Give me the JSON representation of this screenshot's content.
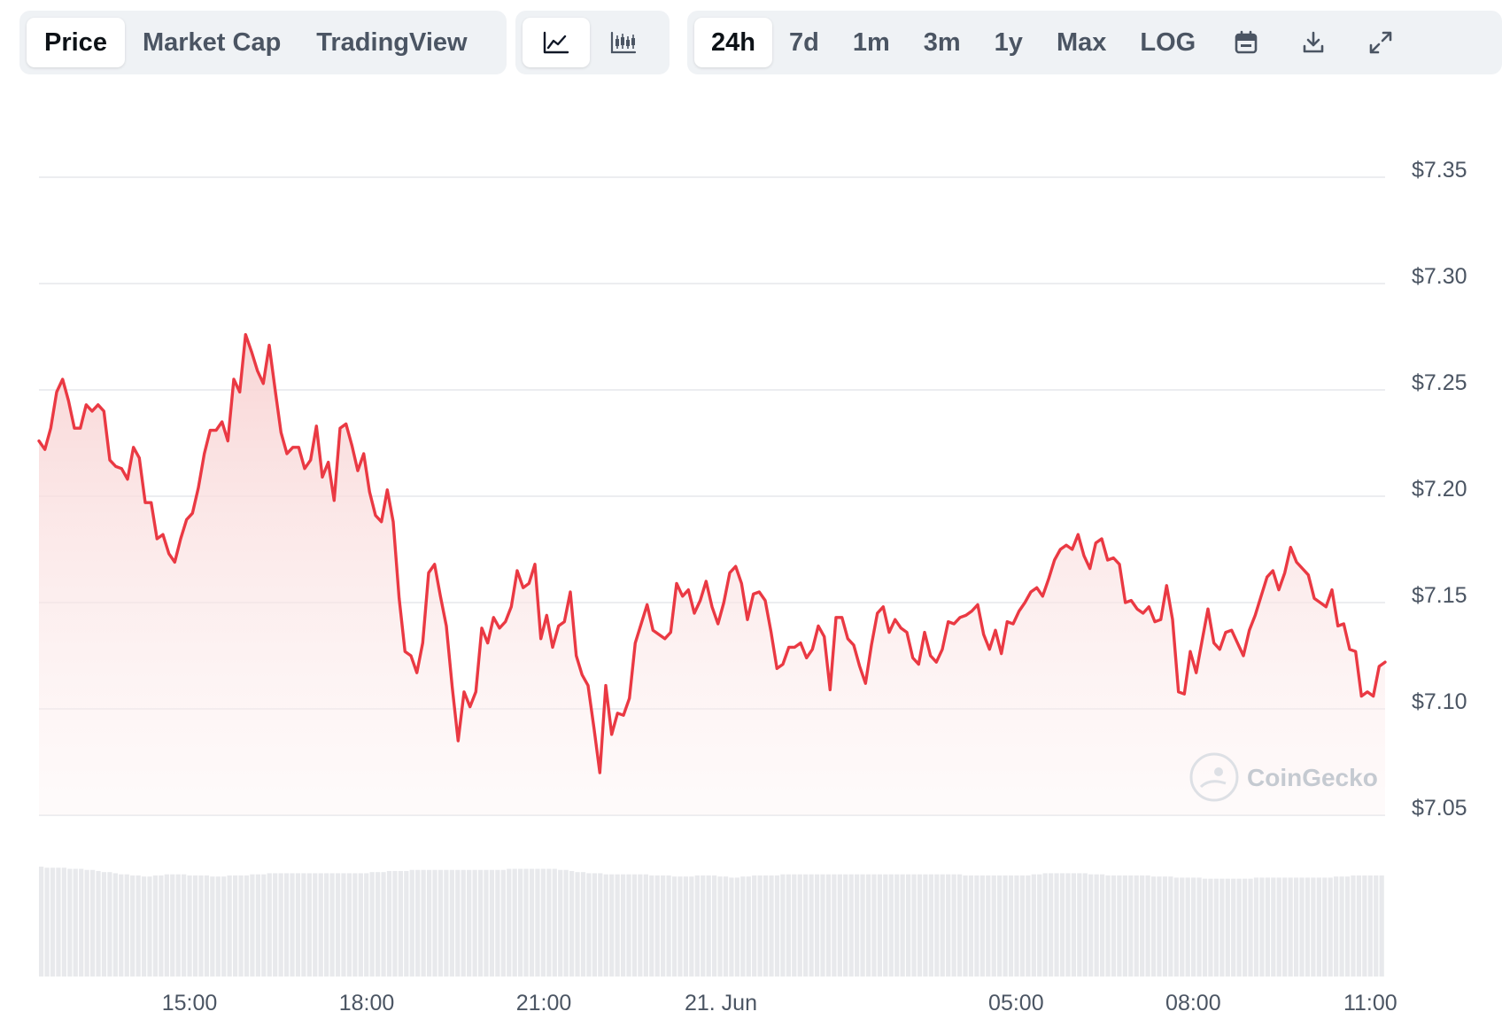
{
  "tabs": [
    {
      "label": "Price",
      "active": true
    },
    {
      "label": "Market Cap",
      "active": false
    },
    {
      "label": "TradingView",
      "active": false
    }
  ],
  "chart_types": [
    {
      "icon": "line-chart-icon",
      "active": true
    },
    {
      "icon": "candlestick-chart-icon",
      "active": false
    }
  ],
  "ranges": [
    {
      "label": "24h",
      "active": true
    },
    {
      "label": "7d",
      "active": false
    },
    {
      "label": "1m",
      "active": false
    },
    {
      "label": "3m",
      "active": false
    },
    {
      "label": "1y",
      "active": false
    },
    {
      "label": "Max",
      "active": false
    },
    {
      "label": "LOG",
      "active": false
    }
  ],
  "tool_icons": [
    "calendar-icon",
    "download-icon",
    "expand-icon"
  ],
  "watermark": "CoinGecko",
  "colors": {
    "line": "#ea3943",
    "fill_top": "#f8d3d3",
    "grid": "#e5e7eb",
    "volume": "#e8e9ec"
  },
  "chart_data": {
    "type": "area",
    "y_tick_labels": [
      "$7.35",
      "$7.30",
      "$7.25",
      "$7.20",
      "$7.15",
      "$7.10",
      "$7.05"
    ],
    "y_ticks": [
      7.35,
      7.3,
      7.25,
      7.2,
      7.15,
      7.1,
      7.05
    ],
    "ylim": [
      7.05,
      7.35
    ],
    "xlim": [
      12.45,
      35.25
    ],
    "x_ticks": [
      {
        "label": "15:00",
        "hour": 15.0
      },
      {
        "label": "18:00",
        "hour": 18.0
      },
      {
        "label": "21:00",
        "hour": 21.0
      },
      {
        "label": "21. Jun",
        "hour": 24.0
      },
      {
        "label": "05:00",
        "hour": 29.0
      },
      {
        "label": "08:00",
        "hour": 32.0
      },
      {
        "label": "11:00",
        "hour": 35.0
      }
    ],
    "series": [
      {
        "values": [
          [
            12.45,
            7.226
          ],
          [
            12.55,
            7.222
          ],
          [
            12.65,
            7.232
          ],
          [
            12.75,
            7.249
          ],
          [
            12.85,
            7.255
          ],
          [
            12.95,
            7.245
          ],
          [
            13.05,
            7.232
          ],
          [
            13.15,
            7.232
          ],
          [
            13.25,
            7.243
          ],
          [
            13.35,
            7.24
          ],
          [
            13.45,
            7.243
          ],
          [
            13.55,
            7.24
          ],
          [
            13.65,
            7.217
          ],
          [
            13.75,
            7.214
          ],
          [
            13.85,
            7.213
          ],
          [
            13.95,
            7.208
          ],
          [
            14.05,
            7.223
          ],
          [
            14.15,
            7.218
          ],
          [
            14.25,
            7.197
          ],
          [
            14.35,
            7.197
          ],
          [
            14.45,
            7.18
          ],
          [
            14.55,
            7.182
          ],
          [
            14.65,
            7.173
          ],
          [
            14.75,
            7.169
          ],
          [
            14.85,
            7.18
          ],
          [
            14.95,
            7.189
          ],
          [
            15.05,
            7.192
          ],
          [
            15.15,
            7.204
          ],
          [
            15.25,
            7.22
          ],
          [
            15.35,
            7.231
          ],
          [
            15.45,
            7.231
          ],
          [
            15.55,
            7.235
          ],
          [
            15.65,
            7.226
          ],
          [
            15.75,
            7.255
          ],
          [
            15.85,
            7.249
          ],
          [
            15.95,
            7.276
          ],
          [
            16.05,
            7.268
          ],
          [
            16.15,
            7.259
          ],
          [
            16.25,
            7.253
          ],
          [
            16.35,
            7.271
          ],
          [
            16.45,
            7.25
          ],
          [
            16.55,
            7.23
          ],
          [
            16.65,
            7.22
          ],
          [
            16.75,
            7.223
          ],
          [
            16.85,
            7.223
          ],
          [
            16.95,
            7.213
          ],
          [
            17.05,
            7.217
          ],
          [
            17.15,
            7.233
          ],
          [
            17.25,
            7.209
          ],
          [
            17.35,
            7.216
          ],
          [
            17.45,
            7.198
          ],
          [
            17.55,
            7.232
          ],
          [
            17.65,
            7.234
          ],
          [
            17.75,
            7.224
          ],
          [
            17.85,
            7.212
          ],
          [
            17.95,
            7.22
          ],
          [
            18.05,
            7.202
          ],
          [
            18.15,
            7.191
          ],
          [
            18.25,
            7.188
          ],
          [
            18.35,
            7.203
          ],
          [
            18.45,
            7.188
          ],
          [
            18.55,
            7.152
          ],
          [
            18.65,
            7.127
          ],
          [
            18.75,
            7.125
          ],
          [
            18.85,
            7.117
          ],
          [
            18.95,
            7.131
          ],
          [
            19.05,
            7.164
          ],
          [
            19.15,
            7.168
          ],
          [
            19.25,
            7.153
          ],
          [
            19.35,
            7.139
          ],
          [
            19.45,
            7.11
          ],
          [
            19.55,
            7.085
          ],
          [
            19.65,
            7.108
          ],
          [
            19.75,
            7.101
          ],
          [
            19.85,
            7.108
          ],
          [
            19.95,
            7.138
          ],
          [
            20.05,
            7.131
          ],
          [
            20.15,
            7.143
          ],
          [
            20.25,
            7.138
          ],
          [
            20.35,
            7.141
          ],
          [
            20.45,
            7.148
          ],
          [
            20.55,
            7.165
          ],
          [
            20.65,
            7.157
          ],
          [
            20.75,
            7.159
          ],
          [
            20.85,
            7.168
          ],
          [
            20.95,
            7.133
          ],
          [
            21.05,
            7.144
          ],
          [
            21.15,
            7.129
          ],
          [
            21.25,
            7.139
          ],
          [
            21.35,
            7.141
          ],
          [
            21.45,
            7.155
          ],
          [
            21.55,
            7.125
          ],
          [
            21.65,
            7.116
          ],
          [
            21.75,
            7.111
          ],
          [
            21.85,
            7.091
          ],
          [
            21.95,
            7.07
          ],
          [
            22.05,
            7.111
          ],
          [
            22.15,
            7.088
          ],
          [
            22.25,
            7.098
          ],
          [
            22.35,
            7.097
          ],
          [
            22.45,
            7.105
          ],
          [
            22.55,
            7.131
          ],
          [
            22.65,
            7.14
          ],
          [
            22.75,
            7.149
          ],
          [
            22.85,
            7.137
          ],
          [
            22.95,
            7.135
          ],
          [
            23.05,
            7.133
          ],
          [
            23.15,
            7.136
          ],
          [
            23.25,
            7.159
          ],
          [
            23.35,
            7.153
          ],
          [
            23.45,
            7.156
          ],
          [
            23.55,
            7.145
          ],
          [
            23.65,
            7.151
          ],
          [
            23.75,
            7.16
          ],
          [
            23.85,
            7.148
          ],
          [
            23.95,
            7.14
          ],
          [
            24.05,
            7.15
          ],
          [
            24.15,
            7.164
          ],
          [
            24.25,
            7.167
          ],
          [
            24.35,
            7.159
          ],
          [
            24.45,
            7.142
          ],
          [
            24.55,
            7.154
          ],
          [
            24.65,
            7.155
          ],
          [
            24.75,
            7.151
          ],
          [
            24.85,
            7.136
          ],
          [
            24.95,
            7.119
          ],
          [
            25.05,
            7.121
          ],
          [
            25.15,
            7.129
          ],
          [
            25.25,
            7.129
          ],
          [
            25.35,
            7.131
          ],
          [
            25.45,
            7.124
          ],
          [
            25.55,
            7.128
          ],
          [
            25.65,
            7.139
          ],
          [
            25.75,
            7.134
          ],
          [
            25.85,
            7.109
          ],
          [
            25.95,
            7.143
          ],
          [
            26.05,
            7.143
          ],
          [
            26.15,
            7.133
          ],
          [
            26.25,
            7.13
          ],
          [
            26.35,
            7.12
          ],
          [
            26.45,
            7.112
          ],
          [
            26.55,
            7.13
          ],
          [
            26.65,
            7.145
          ],
          [
            26.75,
            7.148
          ],
          [
            26.85,
            7.136
          ],
          [
            26.95,
            7.142
          ],
          [
            27.05,
            7.138
          ],
          [
            27.15,
            7.136
          ],
          [
            27.25,
            7.124
          ],
          [
            27.35,
            7.121
          ],
          [
            27.45,
            7.136
          ],
          [
            27.55,
            7.125
          ],
          [
            27.65,
            7.122
          ],
          [
            27.75,
            7.128
          ],
          [
            27.85,
            7.141
          ],
          [
            27.95,
            7.14
          ],
          [
            28.05,
            7.143
          ],
          [
            28.15,
            7.144
          ],
          [
            28.25,
            7.146
          ],
          [
            28.35,
            7.149
          ],
          [
            28.45,
            7.135
          ],
          [
            28.55,
            7.128
          ],
          [
            28.65,
            7.137
          ],
          [
            28.75,
            7.126
          ],
          [
            28.85,
            7.141
          ],
          [
            28.95,
            7.14
          ],
          [
            29.05,
            7.146
          ],
          [
            29.15,
            7.15
          ],
          [
            29.25,
            7.155
          ],
          [
            29.35,
            7.157
          ],
          [
            29.45,
            7.153
          ],
          [
            29.55,
            7.161
          ],
          [
            29.65,
            7.17
          ],
          [
            29.75,
            7.175
          ],
          [
            29.85,
            7.177
          ],
          [
            29.95,
            7.175
          ],
          [
            30.05,
            7.182
          ],
          [
            30.15,
            7.172
          ],
          [
            30.25,
            7.166
          ],
          [
            30.35,
            7.178
          ],
          [
            30.45,
            7.18
          ],
          [
            30.55,
            7.17
          ],
          [
            30.65,
            7.171
          ],
          [
            30.75,
            7.168
          ],
          [
            30.85,
            7.15
          ],
          [
            30.95,
            7.151
          ],
          [
            31.05,
            7.147
          ],
          [
            31.15,
            7.145
          ],
          [
            31.25,
            7.148
          ],
          [
            31.35,
            7.141
          ],
          [
            31.45,
            7.142
          ],
          [
            31.55,
            7.158
          ],
          [
            31.65,
            7.142
          ],
          [
            31.75,
            7.108
          ],
          [
            31.85,
            7.107
          ],
          [
            31.95,
            7.127
          ],
          [
            32.05,
            7.117
          ],
          [
            32.15,
            7.132
          ],
          [
            32.25,
            7.147
          ],
          [
            32.35,
            7.131
          ],
          [
            32.45,
            7.128
          ],
          [
            32.55,
            7.136
          ],
          [
            32.65,
            7.137
          ],
          [
            32.75,
            7.131
          ],
          [
            32.85,
            7.125
          ],
          [
            32.95,
            7.137
          ],
          [
            33.05,
            7.144
          ],
          [
            33.15,
            7.153
          ],
          [
            33.25,
            7.162
          ],
          [
            33.35,
            7.165
          ],
          [
            33.45,
            7.156
          ],
          [
            33.55,
            7.164
          ],
          [
            33.65,
            7.176
          ],
          [
            33.75,
            7.169
          ],
          [
            33.85,
            7.166
          ],
          [
            33.95,
            7.163
          ],
          [
            34.05,
            7.152
          ],
          [
            34.15,
            7.15
          ],
          [
            34.25,
            7.148
          ],
          [
            34.35,
            7.156
          ],
          [
            34.45,
            7.139
          ],
          [
            34.55,
            7.14
          ],
          [
            34.65,
            7.128
          ],
          [
            34.75,
            7.127
          ],
          [
            34.85,
            7.106
          ],
          [
            34.95,
            7.108
          ],
          [
            35.05,
            7.106
          ],
          [
            35.15,
            7.12
          ],
          [
            35.25,
            7.122
          ]
        ]
      }
    ],
    "volume": [
      1.0,
      0.99,
      0.99,
      0.99,
      0.99,
      0.98,
      0.98,
      0.98,
      0.97,
      0.97,
      0.96,
      0.95,
      0.95,
      0.94,
      0.93,
      0.93,
      0.92,
      0.92,
      0.91,
      0.91,
      0.92,
      0.92,
      0.93,
      0.93,
      0.93,
      0.93,
      0.92,
      0.92,
      0.92,
      0.92,
      0.91,
      0.91,
      0.91,
      0.92,
      0.92,
      0.92,
      0.92,
      0.93,
      0.93,
      0.93,
      0.94,
      0.94,
      0.94,
      0.94,
      0.94,
      0.94,
      0.94,
      0.94,
      0.94,
      0.94,
      0.94,
      0.94,
      0.94,
      0.94,
      0.94,
      0.94,
      0.94,
      0.94,
      0.95,
      0.95,
      0.95,
      0.96,
      0.96,
      0.96,
      0.96,
      0.97,
      0.97,
      0.97,
      0.97,
      0.97,
      0.97,
      0.97,
      0.97,
      0.97,
      0.97,
      0.97,
      0.97,
      0.97,
      0.97,
      0.97,
      0.97,
      0.97,
      0.98,
      0.98,
      0.98,
      0.98,
      0.98,
      0.98,
      0.98,
      0.98,
      0.98,
      0.97,
      0.97,
      0.96,
      0.95,
      0.95,
      0.94,
      0.94,
      0.94,
      0.93,
      0.93,
      0.93,
      0.93,
      0.93,
      0.93,
      0.93,
      0.93,
      0.92,
      0.92,
      0.92,
      0.92,
      0.91,
      0.91,
      0.91,
      0.91,
      0.92,
      0.92,
      0.92,
      0.92,
      0.91,
      0.91,
      0.9,
      0.9,
      0.91,
      0.91,
      0.92,
      0.92,
      0.92,
      0.92,
      0.92,
      0.93,
      0.93,
      0.93,
      0.93,
      0.93,
      0.93,
      0.93,
      0.93,
      0.93,
      0.93,
      0.93,
      0.93,
      0.93,
      0.93,
      0.93,
      0.93,
      0.93,
      0.93,
      0.93,
      0.93,
      0.93,
      0.93,
      0.93,
      0.93,
      0.93,
      0.93,
      0.93,
      0.93,
      0.93,
      0.93,
      0.93,
      0.93,
      0.92,
      0.92,
      0.92,
      0.92,
      0.92,
      0.92,
      0.92,
      0.92,
      0.92,
      0.92,
      0.92,
      0.92,
      0.93,
      0.93,
      0.94,
      0.94,
      0.94,
      0.94,
      0.94,
      0.94,
      0.94,
      0.94,
      0.93,
      0.93,
      0.93,
      0.92,
      0.92,
      0.92,
      0.92,
      0.92,
      0.92,
      0.92,
      0.92,
      0.91,
      0.91,
      0.91,
      0.91,
      0.9,
      0.9,
      0.9,
      0.9,
      0.9,
      0.89,
      0.89,
      0.89,
      0.89,
      0.89,
      0.89,
      0.89,
      0.89,
      0.89,
      0.9,
      0.9,
      0.9,
      0.9,
      0.9,
      0.9,
      0.9,
      0.9,
      0.9,
      0.9,
      0.9,
      0.9,
      0.9,
      0.9,
      0.91,
      0.91,
      0.91,
      0.92,
      0.92,
      0.92,
      0.92,
      0.92,
      0.92
    ]
  }
}
